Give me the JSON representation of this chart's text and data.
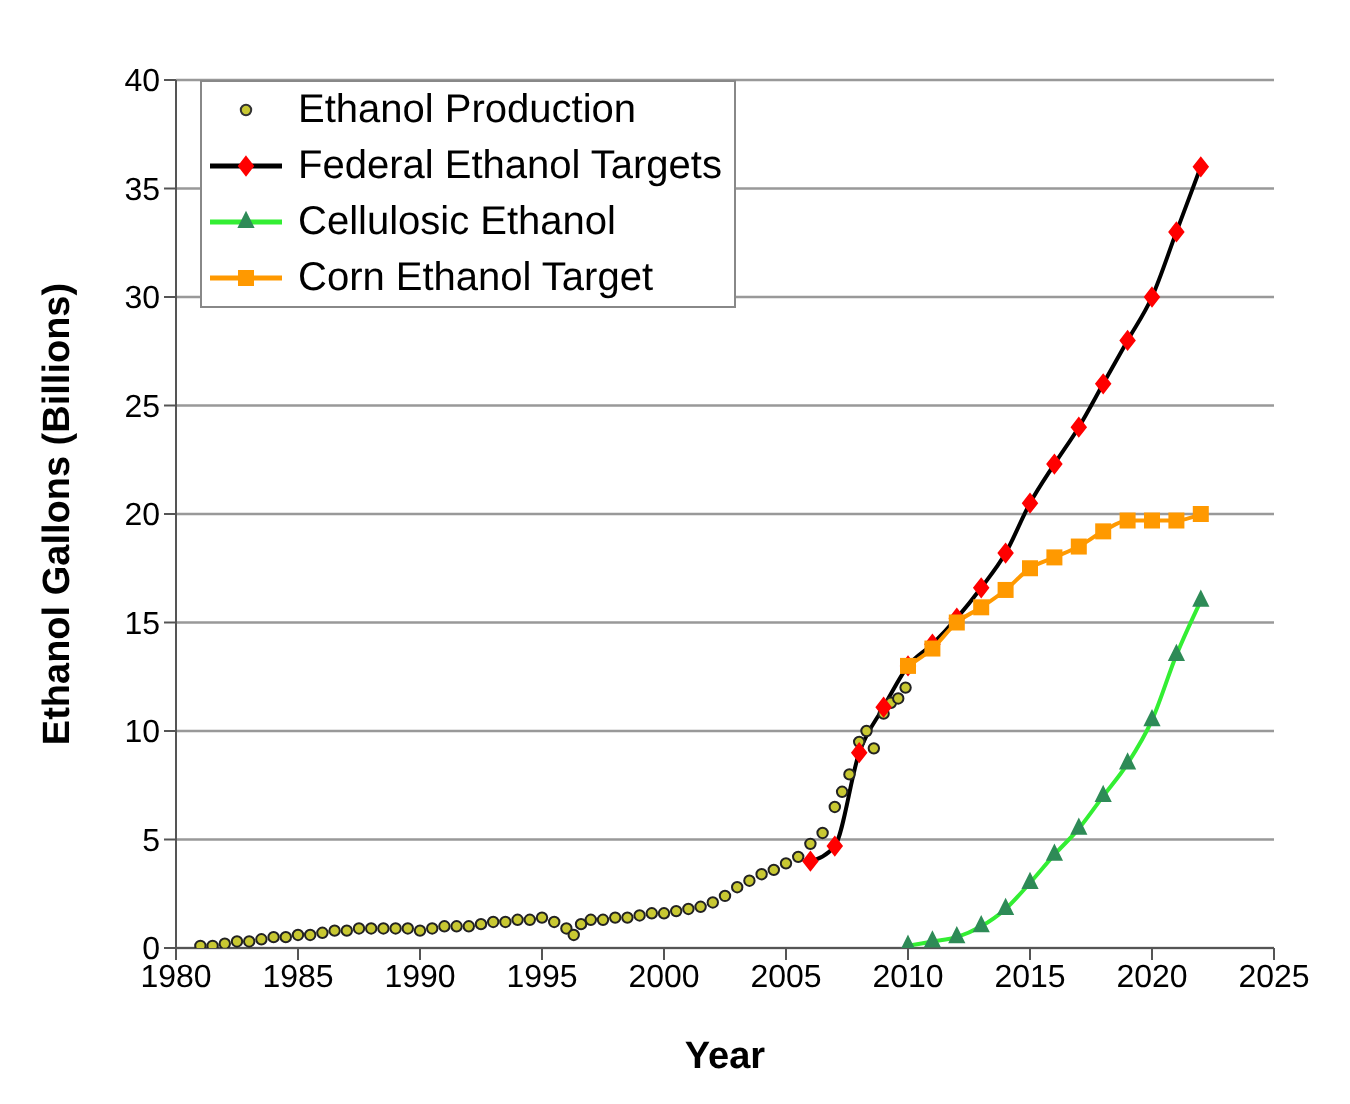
{
  "chart_data": {
    "type": "line",
    "xlabel": "Year",
    "ylabel": "Ethanol Gallons (Billions)",
    "xlim": [
      1980,
      2025
    ],
    "xticks": [
      1980,
      1985,
      1990,
      1995,
      2000,
      2005,
      2010,
      2015,
      2020,
      2025
    ],
    "ylim": [
      0,
      40
    ],
    "yticks": [
      0,
      5,
      10,
      15,
      20,
      25,
      30,
      35,
      40
    ],
    "grid": "y",
    "legend": "top left",
    "series": [
      {
        "name": "Ethanol Production",
        "type": "scatter",
        "marker": "circle",
        "color": "#c8c832",
        "x": [
          1981,
          1981.5,
          1982,
          1982.5,
          1983,
          1983.5,
          1984,
          1984.5,
          1985,
          1985.5,
          1986,
          1986.5,
          1987,
          1987.5,
          1988,
          1988.5,
          1989,
          1989.5,
          1990,
          1990.5,
          1991,
          1991.5,
          1992,
          1992.5,
          1993,
          1993.5,
          1994,
          1994.5,
          1995,
          1995.5,
          1996,
          1996.3,
          1996.6,
          1997,
          1997.5,
          1998,
          1998.5,
          1999,
          1999.5,
          2000,
          2000.5,
          2001,
          2001.5,
          2002,
          2002.5,
          2003,
          2003.5,
          2004,
          2004.5,
          2005,
          2005.5,
          2006,
          2006.5,
          2007,
          2007.3,
          2007.6,
          2008,
          2008.3,
          2008.6,
          2009,
          2009.3,
          2009.6,
          2009.9
        ],
        "values": [
          0.1,
          0.1,
          0.2,
          0.3,
          0.3,
          0.4,
          0.5,
          0.5,
          0.6,
          0.6,
          0.7,
          0.8,
          0.8,
          0.9,
          0.9,
          0.9,
          0.9,
          0.9,
          0.8,
          0.9,
          1.0,
          1.0,
          1.0,
          1.1,
          1.2,
          1.2,
          1.3,
          1.3,
          1.4,
          1.2,
          0.9,
          0.6,
          1.1,
          1.3,
          1.3,
          1.4,
          1.4,
          1.5,
          1.6,
          1.6,
          1.7,
          1.8,
          1.9,
          2.1,
          2.4,
          2.8,
          3.1,
          3.4,
          3.6,
          3.9,
          4.2,
          4.8,
          5.3,
          6.5,
          7.2,
          8.0,
          9.5,
          10.0,
          9.2,
          10.8,
          11.3,
          11.5,
          12.0
        ]
      },
      {
        "name": "Federal Ethanol Targets",
        "marker": "diamond",
        "color": "#000000",
        "colors": [
          "#ff0000",
          "#ff0000",
          "#ff0000",
          "#ff0000",
          "#ff0000",
          "#ff0000",
          "#ff0000",
          "#ff0000",
          "#ff0000",
          "#ff0000",
          "#ff0000",
          "#ff0000",
          "#ff0000",
          "#ff0000",
          "#ff0000",
          "#ff0000",
          "#ff0000"
        ],
        "x": [
          2006,
          2007,
          2008,
          2009,
          2010,
          2011,
          2012,
          2013,
          2014,
          2015,
          2016,
          2017,
          2018,
          2019,
          2020,
          2021,
          2022
        ],
        "values": [
          4.0,
          4.7,
          9.0,
          11.1,
          13.0,
          14.0,
          15.2,
          16.6,
          18.2,
          20.5,
          22.3,
          24,
          26,
          28,
          30,
          33,
          36
        ]
      },
      {
        "name": "Cellulosic Ethanol",
        "marker": "triangle",
        "color": "#33ee33",
        "colors": [
          "#2e8b57",
          "#2e8b57",
          "#2e8b57",
          "#2e8b57",
          "#2e8b57",
          "#2e8b57",
          "#2e8b57",
          "#2e8b57",
          "#2e8b57",
          "#2e8b57",
          "#2e8b57",
          "#2e8b57",
          "#2e8b57"
        ],
        "x": [
          2010,
          2011,
          2012,
          2013,
          2014,
          2015,
          2016,
          2017,
          2018,
          2019,
          2020,
          2021,
          2022
        ],
        "values": [
          0.1,
          0.3,
          0.5,
          1.0,
          1.8,
          3.0,
          4.3,
          5.5,
          7.0,
          8.5,
          10.5,
          13.5,
          16.0
        ]
      },
      {
        "name": "Corn Ethanol Target",
        "marker": "square",
        "color": "#ff9900",
        "x": [
          2010,
          2011,
          2012,
          2013,
          2014,
          2015,
          2016,
          2017,
          2018,
          2019,
          2020,
          2021,
          2022
        ],
        "values": [
          13.0,
          13.8,
          15.0,
          15.7,
          16.5,
          17.5,
          18.0,
          18.5,
          19.2,
          19.7,
          19.7,
          19.7,
          20.0
        ]
      }
    ]
  }
}
